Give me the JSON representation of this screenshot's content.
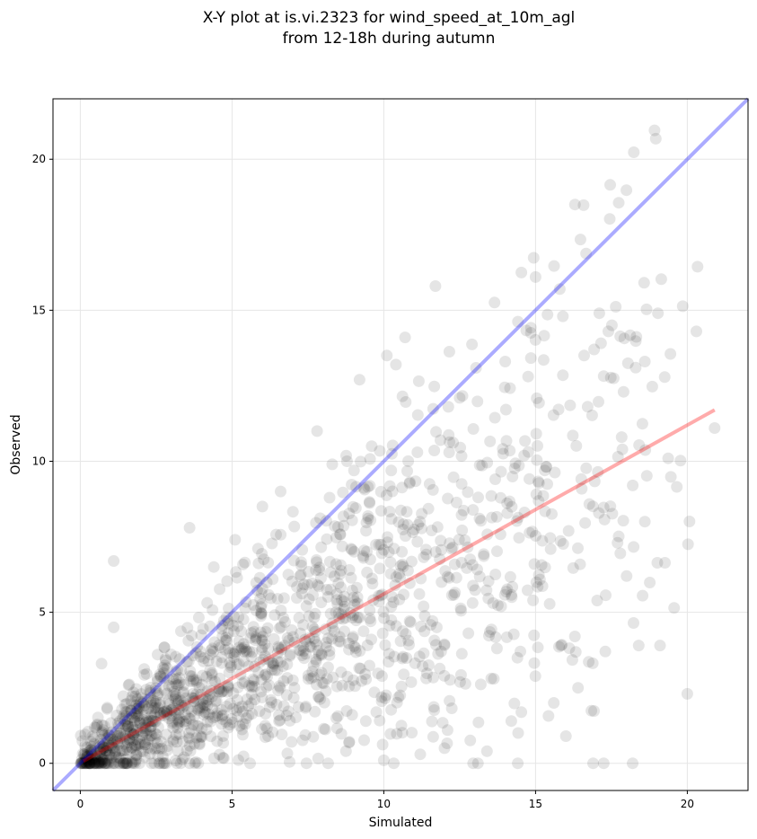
{
  "chart_data": {
    "type": "scatter",
    "title_line1": "X-Y plot at is.vi.2323 for wind_speed_at_10m_agl",
    "title_line2": "from 12-18h during autumn",
    "xlabel": "Simulated",
    "ylabel": "Observed",
    "xlim": [
      -0.9,
      22
    ],
    "ylim": [
      -0.9,
      22
    ],
    "xticks": [
      0,
      5,
      10,
      15,
      20
    ],
    "yticks": [
      0,
      5,
      10,
      15,
      20
    ],
    "grid": true,
    "point_color": "#000000",
    "point_alpha": 0.1,
    "identity_line": {
      "color": "#0000ff",
      "alpha": 0.33,
      "from": [
        -0.9,
        -0.9
      ],
      "to": [
        22,
        22
      ]
    },
    "fit_line": {
      "color": "#ff0000",
      "alpha": 0.33,
      "from": [
        0.1,
        0.07
      ],
      "to": [
        20.9,
        11.7
      ]
    },
    "outliers": [
      [
        16.3,
        18.5
      ],
      [
        11.7,
        15.8
      ],
      [
        15.0,
        16.1
      ],
      [
        15.8,
        15.7
      ],
      [
        20.3,
        14.3
      ],
      [
        10.7,
        14.1
      ],
      [
        1.1,
        6.7
      ],
      [
        3.6,
        7.8
      ],
      [
        5.1,
        7.4
      ],
      [
        4.4,
        6.5
      ],
      [
        20.0,
        2.3
      ],
      [
        19.1,
        3.9
      ],
      [
        20.9,
        11.1
      ],
      [
        18.6,
        8.0
      ],
      [
        13.1,
        0.0
      ],
      [
        16.0,
        0.9
      ],
      [
        13.4,
        0.4
      ],
      [
        1.1,
        4.5
      ],
      [
        0.7,
        3.3
      ],
      [
        17.1,
        14.9
      ],
      [
        15.9,
        14.8
      ],
      [
        18.3,
        13.1
      ],
      [
        18.6,
        13.3
      ],
      [
        17.9,
        12.3
      ],
      [
        9.2,
        12.7
      ],
      [
        10.1,
        13.5
      ],
      [
        10.4,
        13.2
      ],
      [
        12.5,
        12.1
      ],
      [
        14.0,
        13.3
      ],
      [
        16.6,
        13.5
      ],
      [
        17.4,
        14.3
      ],
      [
        18.2,
        9.2
      ],
      [
        18.0,
        6.2
      ],
      [
        17.7,
        7.3
      ],
      [
        18.4,
        3.9
      ],
      [
        17.3,
        3.7
      ],
      [
        16.4,
        2.5
      ],
      [
        15.6,
        2.0
      ],
      [
        14.2,
        1.4
      ],
      [
        12.1,
        1.1
      ],
      [
        10.0,
        0.1
      ],
      [
        11.2,
        0.3
      ],
      [
        12.0,
        0.5
      ],
      [
        8.3,
        9.9
      ],
      [
        7.8,
        11.0
      ],
      [
        6.6,
        9.0
      ],
      [
        6.0,
        8.5
      ],
      [
        9.6,
        10.5
      ]
    ],
    "cloud_seed": 2323,
    "cloud_n": 1500
  }
}
